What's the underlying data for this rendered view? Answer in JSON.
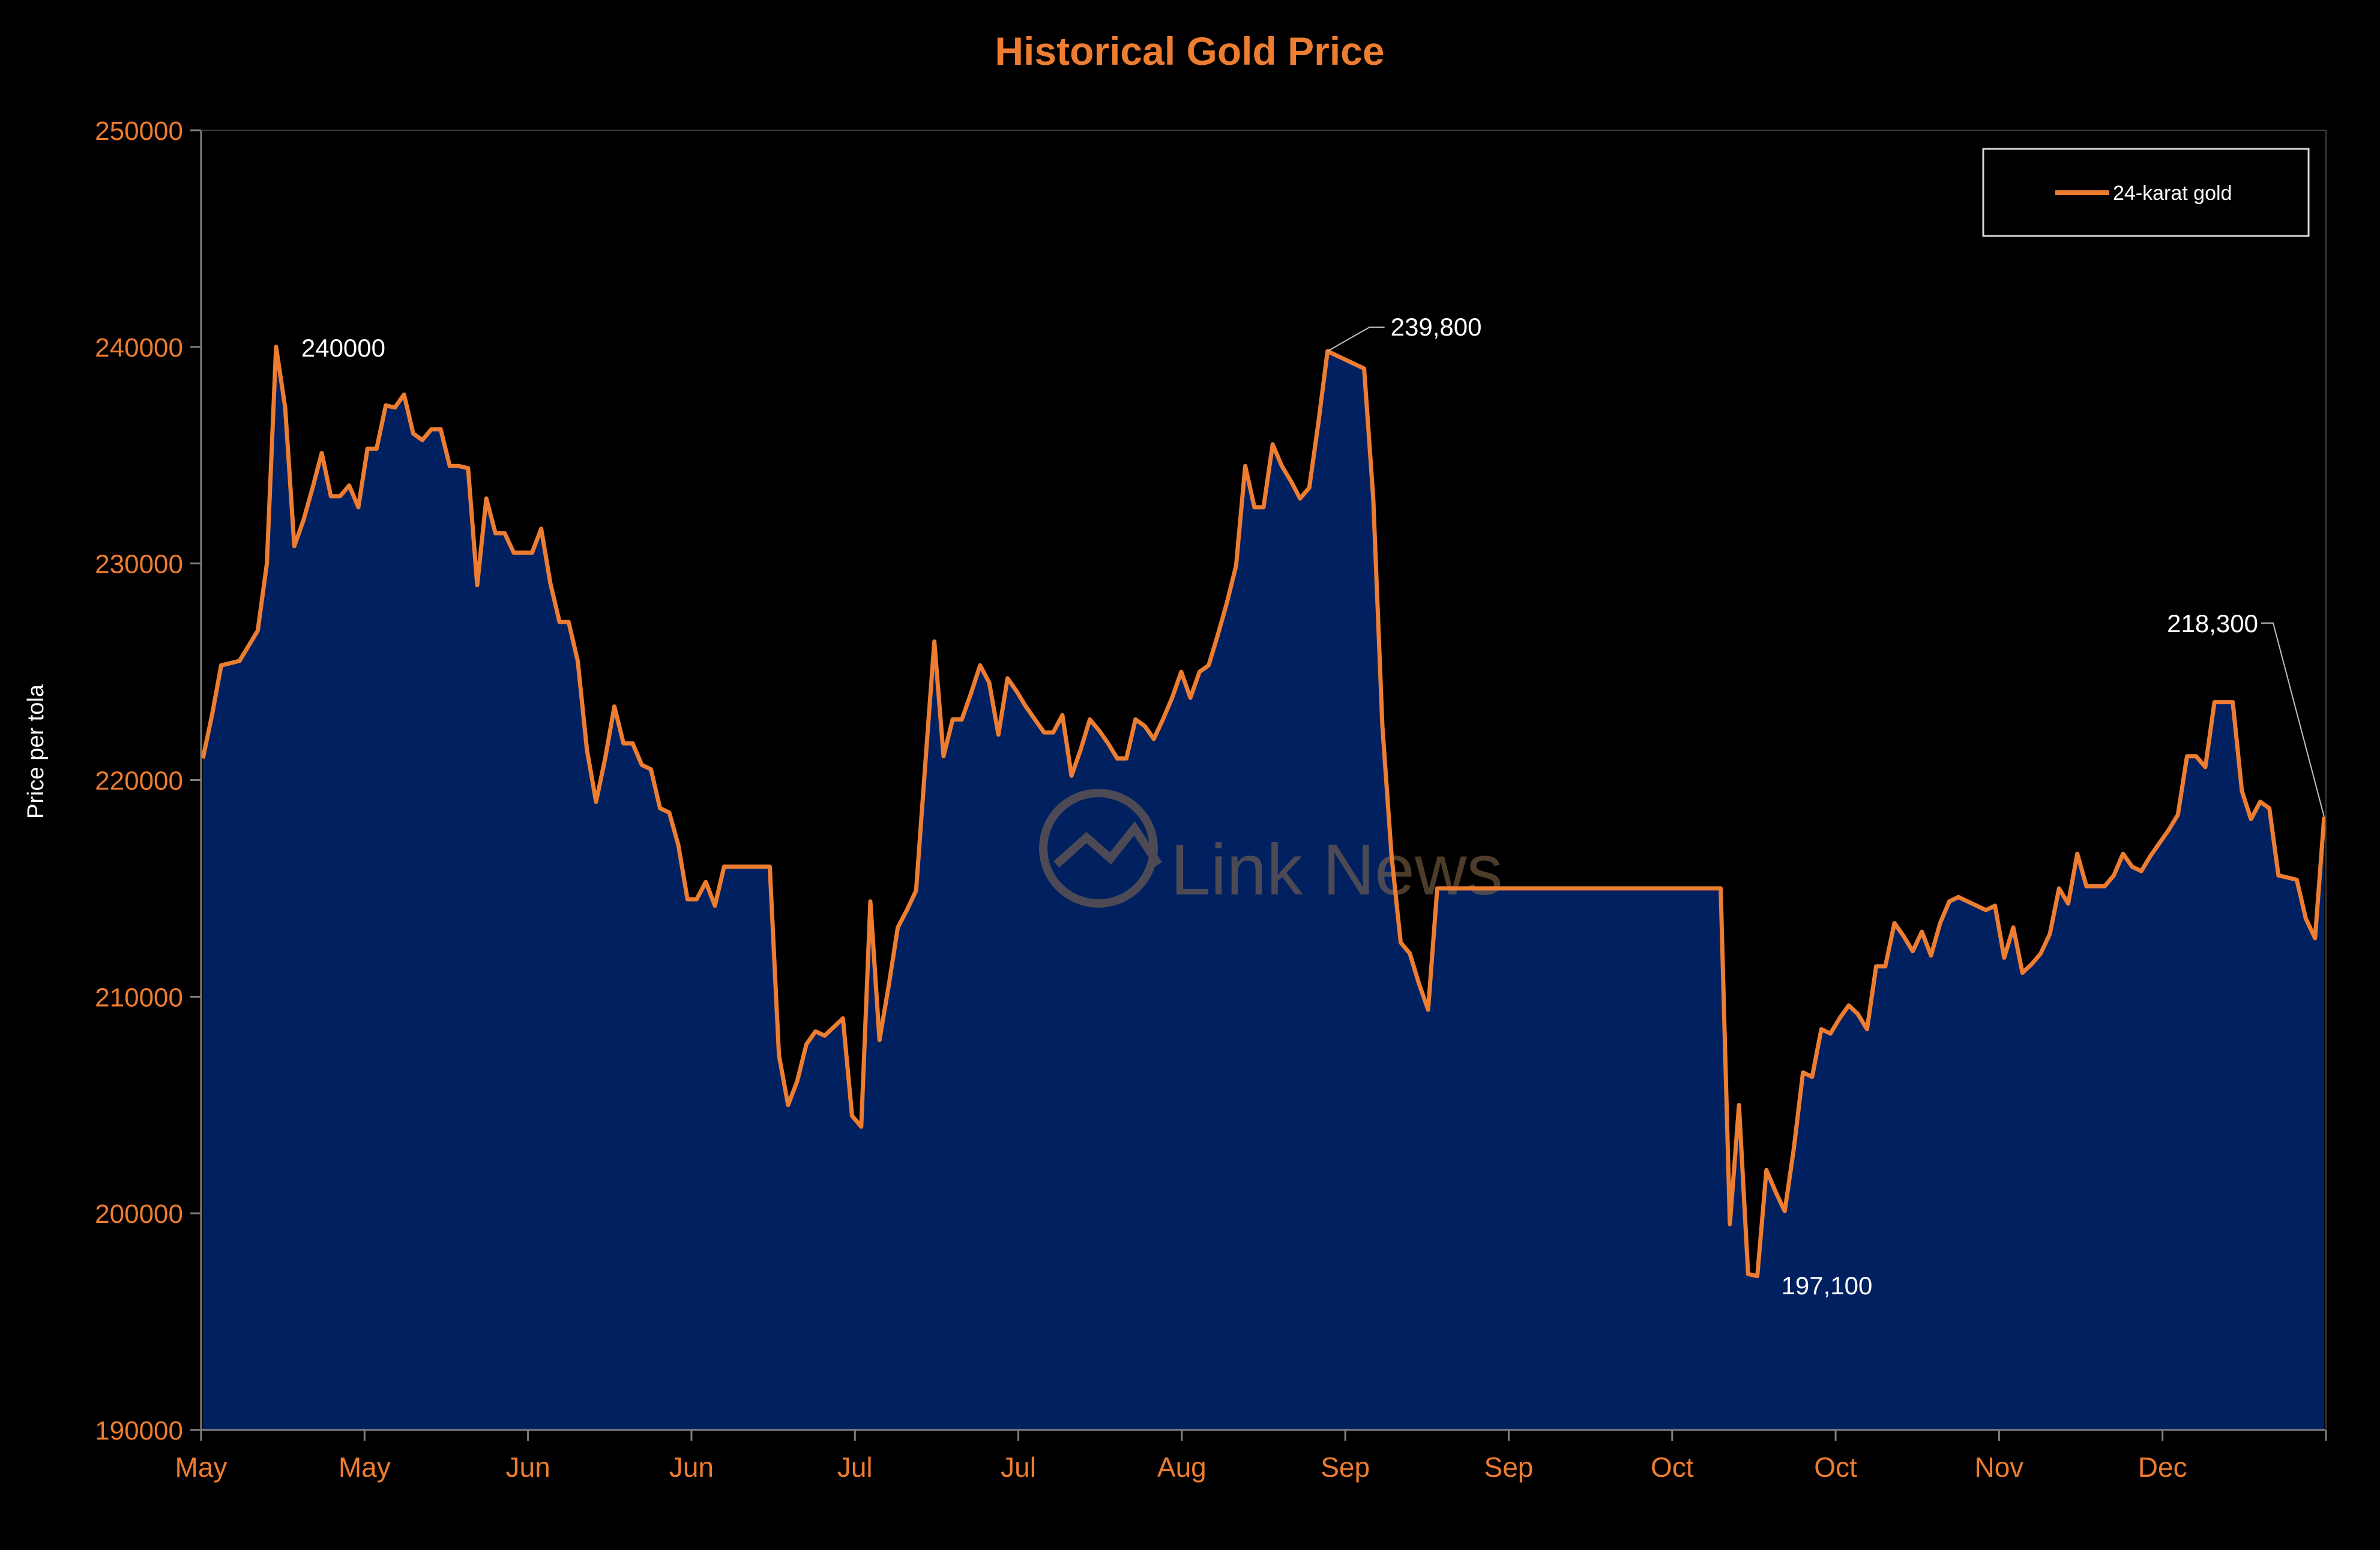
{
  "colors": {
    "background": "#000000",
    "accent": "#ED7D31",
    "fill": "#002060",
    "text": "#FFFFFF",
    "axis": "#808080"
  },
  "logo_text": "Link News",
  "chart_data": {
    "type": "area",
    "title": "Historical Gold Price",
    "xlabel": "",
    "ylabel": "Price per tola",
    "ylim": [
      190000,
      250000
    ],
    "yticks": [
      190000,
      200000,
      210000,
      220000,
      230000,
      240000,
      250000
    ],
    "ytick_labels": [
      "190000",
      "200000",
      "210000",
      "220000",
      "230000",
      "240000",
      "250000"
    ],
    "xtick_labels": [
      "May",
      "May",
      "Jun",
      "Jun",
      "Jul",
      "Jul",
      "Aug",
      "Sep",
      "Sep",
      "Oct",
      "Oct",
      "Nov",
      "Dec"
    ],
    "grid": false,
    "legend": {
      "position": "top-right",
      "entries": [
        "24-karat gold"
      ]
    },
    "series": [
      {
        "name": "24-karat gold",
        "values": [
          221000,
          223000,
          225300,
          225400,
          225500,
          226200,
          226900,
          230000,
          240000,
          237200,
          230800,
          232000,
          233500,
          235100,
          233100,
          233100,
          233600,
          232600,
          235300,
          235300,
          237300,
          237200,
          237800,
          236000,
          235700,
          236200,
          236200,
          234500,
          234500,
          234400,
          229000,
          233000,
          231400,
          231400,
          230500,
          230500,
          230500,
          231600,
          229100,
          227300,
          227300,
          225500,
          221400,
          219000,
          221000,
          223400,
          221700,
          221700,
          220700,
          220500,
          218700,
          218500,
          217000,
          214500,
          214500,
          215300,
          214200,
          216000,
          216000,
          216000,
          216000,
          216000,
          216000,
          207300,
          205000,
          206100,
          207800,
          208400,
          208200,
          208600,
          209000,
          204500,
          204000,
          214400,
          208000,
          210500,
          213200,
          214000,
          214900,
          220700,
          226400,
          221100,
          222800,
          222800,
          224000,
          225300,
          224500,
          222100,
          224700,
          224100,
          223400,
          222800,
          222200,
          222200,
          223000,
          220200,
          221400,
          222800,
          222300,
          221700,
          221000,
          221000,
          222800,
          222500,
          221900,
          222800,
          223800,
          225000,
          223800,
          225000,
          225300,
          226700,
          228200,
          229900,
          234500,
          232600,
          232600,
          235500,
          234500,
          233800,
          233000,
          233500,
          236500,
          239800,
          239600,
          239400,
          239200,
          239000,
          233000,
          222500,
          216500,
          212500,
          212000,
          210600,
          209400,
          215000,
          215000,
          215000,
          215000,
          215000,
          215000,
          215000,
          215000,
          215000,
          215000,
          215000,
          215000,
          215000,
          215000,
          215000,
          215000,
          215000,
          215000,
          215000,
          215000,
          215000,
          215000,
          215000,
          215000,
          215000,
          215000,
          215000,
          215000,
          215000,
          215000,
          215000,
          215000,
          199500,
          205000,
          197200,
          197100,
          202000,
          201000,
          200100,
          203000,
          206500,
          206300,
          208500,
          208300,
          209000,
          209600,
          209200,
          208500,
          211400,
          211400,
          213400,
          212800,
          212100,
          213000,
          211900,
          213400,
          214400,
          214600,
          214400,
          214200,
          214000,
          214200,
          211800,
          213200,
          211100,
          211500,
          212000,
          212900,
          215000,
          214300,
          216600,
          215100,
          215100,
          215100,
          215600,
          216600,
          216000,
          215800,
          216500,
          217100,
          217700,
          218400,
          221100,
          221100,
          220600,
          223600,
          223600,
          223600,
          219500,
          218200,
          219000,
          218700,
          215600,
          215500,
          215400,
          213600,
          212700,
          218300
        ]
      }
    ],
    "annotations": [
      {
        "label": "240000",
        "value": 240000
      },
      {
        "label": "239,800",
        "value": 239800
      },
      {
        "label": "197,100",
        "value": 197100
      },
      {
        "label": "218,300",
        "value": 218300
      }
    ]
  }
}
